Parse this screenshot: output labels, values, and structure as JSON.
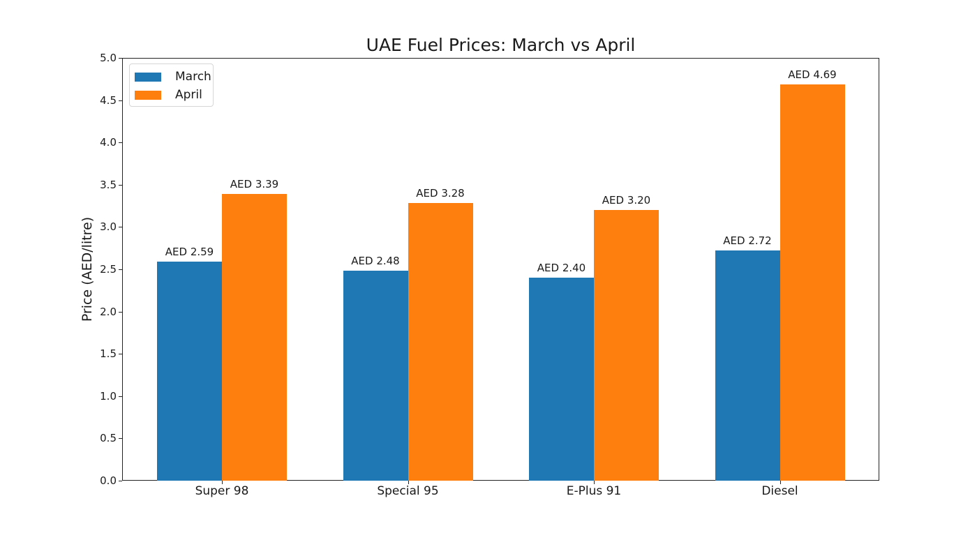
{
  "chart_data": {
    "type": "bar",
    "title": "UAE Fuel Prices: March vs April",
    "xlabel": "",
    "ylabel": "Price (AED/litre)",
    "ylim": [
      0,
      5.0
    ],
    "yticks": [
      "0.0",
      "0.5",
      "1.0",
      "1.5",
      "2.0",
      "2.5",
      "3.0",
      "3.5",
      "4.0",
      "4.5",
      "5.0"
    ],
    "categories": [
      "Super 98",
      "Special 95",
      "E-Plus 91",
      "Diesel"
    ],
    "series": [
      {
        "name": "March",
        "color": "#1f77b4",
        "values": [
          2.59,
          2.48,
          2.4,
          2.72
        ],
        "labels": [
          "AED 2.59",
          "AED 2.48",
          "AED 2.40",
          "AED 2.72"
        ]
      },
      {
        "name": "April",
        "color": "#ff7f0e",
        "values": [
          3.39,
          3.28,
          3.2,
          4.69
        ],
        "labels": [
          "AED 3.39",
          "AED 3.28",
          "AED 3.20",
          "AED 4.69"
        ]
      }
    ],
    "legend": {
      "position": "upper left",
      "entries": [
        "March",
        "April"
      ]
    },
    "grid": false
  }
}
